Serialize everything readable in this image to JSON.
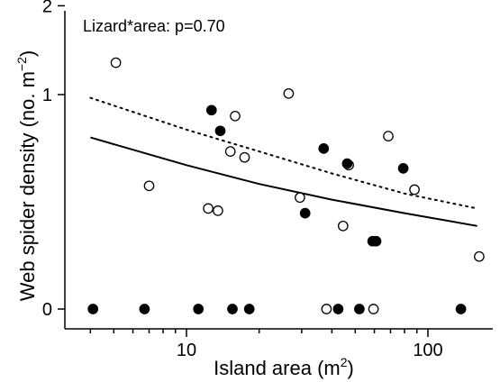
{
  "chart_data": {
    "type": "scatter",
    "annotation": "Lizard*area: p=0.70",
    "xlabel": "Island area",
    "xlabel_unit_prefix": "(m",
    "xlabel_unit_sup": "2",
    "xlabel_unit_suffix": ")",
    "ylabel": "Web spider density",
    "ylabel_unit_prefix": "(no. m",
    "ylabel_unit_sup": "−2",
    "ylabel_unit_suffix": ")",
    "x_scale": "log",
    "xlim": [
      3.5,
      180
    ],
    "x_ticks": [
      10,
      100
    ],
    "x_ticks_labels": [
      "10",
      "100"
    ],
    "y_scale": "sqrt",
    "ylim": [
      0,
      2.4
    ],
    "y_ticks": [
      0,
      1,
      2
    ],
    "y_ticks_labels": [
      "0",
      "1",
      "2"
    ],
    "grid": false,
    "series": [
      {
        "marker": "open",
        "fill": "#ffffff",
        "stroke": "#000000",
        "points": [
          [
            5.1,
            1.32
          ],
          [
            7.0,
            0.33
          ],
          [
            12.3,
            0.22
          ],
          [
            13.5,
            0.21
          ],
          [
            15.2,
            0.54
          ],
          [
            15.9,
            0.81
          ],
          [
            17.4,
            0.5
          ],
          [
            26.5,
            1.01
          ],
          [
            29.5,
            0.27
          ],
          [
            38.0,
            0.0
          ],
          [
            44.5,
            0.15
          ],
          [
            47.0,
            0.45
          ],
          [
            59.5,
            0.0
          ],
          [
            68.5,
            0.65
          ],
          [
            88.0,
            0.31
          ],
          [
            163.0,
            0.06
          ]
        ]
      },
      {
        "marker": "filled",
        "fill": "#000000",
        "stroke": "#000000",
        "points": [
          [
            4.1,
            0.0
          ],
          [
            6.7,
            0.0
          ],
          [
            11.2,
            0.0
          ],
          [
            12.7,
            0.86
          ],
          [
            13.8,
            0.69
          ],
          [
            15.5,
            0.0
          ],
          [
            18.2,
            0.0
          ],
          [
            31.0,
            0.2
          ],
          [
            37.0,
            0.56
          ],
          [
            42.5,
            0.0
          ],
          [
            46.3,
            0.46
          ],
          [
            52.0,
            0.0
          ],
          [
            59.0,
            0.1
          ],
          [
            61.0,
            0.1
          ],
          [
            79.0,
            0.43
          ],
          [
            137.0,
            0.0
          ]
        ]
      }
    ],
    "curves": [
      {
        "style": "dotted",
        "stroke": "#000000",
        "points": [
          [
            4.0,
            0.97
          ],
          [
            10,
            0.7
          ],
          [
            20,
            0.54
          ],
          [
            40,
            0.4
          ],
          [
            80,
            0.29
          ],
          [
            160,
            0.22
          ]
        ]
      },
      {
        "style": "solid",
        "stroke": "#000000",
        "points": [
          [
            4.0,
            0.64
          ],
          [
            10,
            0.45
          ],
          [
            20,
            0.34
          ],
          [
            40,
            0.26
          ],
          [
            80,
            0.2
          ],
          [
            160,
            0.15
          ]
        ]
      }
    ]
  }
}
